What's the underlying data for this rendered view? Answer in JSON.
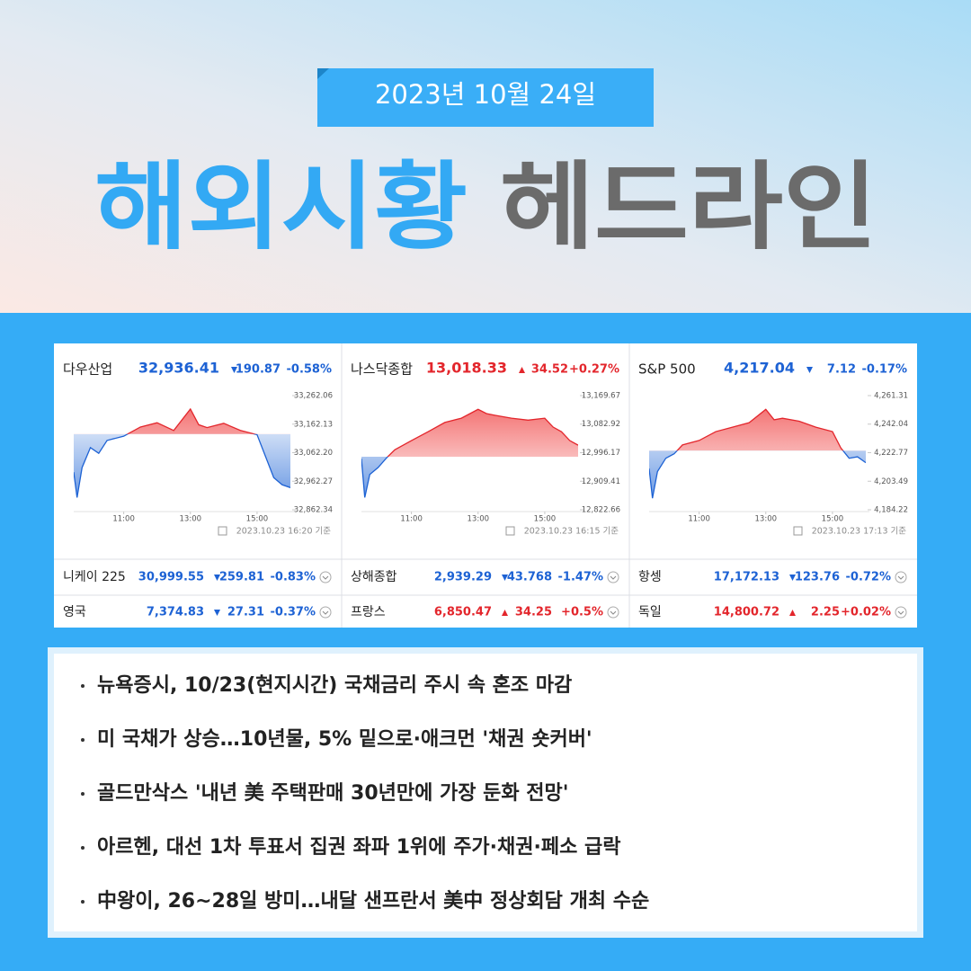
{
  "header": {
    "date": "2023년 10월 24일",
    "title_blue": "해외시황",
    "title_gray": "헤드라인"
  },
  "colors": {
    "up": "#e3262c",
    "down": "#1d62d4"
  },
  "indices": [
    {
      "name": "다우산업",
      "price": "32,936.41",
      "change": "190.87",
      "percent": "-0.58%",
      "direction": "down",
      "timestamp": "2023.10.23 16:20 기준",
      "chart": {
        "type": "line",
        "x": [
          9.5,
          9.6,
          9.75,
          10,
          10.25,
          10.5,
          11,
          11.5,
          12,
          12.5,
          13,
          13.25,
          13.5,
          14,
          14.5,
          15,
          15.25,
          15.5,
          15.75,
          16
        ],
        "values": [
          32994,
          32905,
          33010,
          33080,
          33060,
          33105,
          33120,
          33152,
          33167,
          33140,
          33215,
          33160,
          33150,
          33165,
          33140,
          33125,
          33050,
          32975,
          32950,
          32940
        ],
        "xlim": [
          9.5,
          16
        ],
        "ylim": [
          32862.34,
          33262.06
        ],
        "xticks": [
          {
            "value": 11,
            "label": "11:00"
          },
          {
            "value": 13,
            "label": "13:00"
          },
          {
            "value": 15,
            "label": "15:00"
          }
        ],
        "yticks": [
          {
            "value": 33262.06,
            "label": "33,262.06"
          },
          {
            "value": 33162.13,
            "label": "33,162.13"
          },
          {
            "value": 33062.2,
            "label": "33,062.20"
          },
          {
            "value": 32962.27,
            "label": "32,962.27"
          },
          {
            "value": 32862.34,
            "label": "32,862.34"
          }
        ]
      }
    },
    {
      "name": "나스닥종합",
      "price": "13,018.33",
      "change": "34.52",
      "percent": "+0.27%",
      "direction": "up",
      "timestamp": "2023.10.23 16:15 기준",
      "chart": {
        "type": "line",
        "x": [
          9.5,
          9.6,
          9.75,
          10,
          10.25,
          10.5,
          11,
          11.5,
          12,
          12.5,
          13,
          13.25,
          13.5,
          14,
          14.5,
          15,
          15.25,
          15.5,
          15.75,
          16
        ],
        "values": [
          12978,
          12860,
          12930,
          12951,
          12980,
          13005,
          13033,
          13060,
          13088,
          13101,
          13128,
          13115,
          13110,
          13101,
          13095,
          13101,
          13074,
          13060,
          13033,
          13019
        ],
        "xlim": [
          9.5,
          16
        ],
        "ylim": [
          12822.66,
          13169.67
        ],
        "xticks": [
          {
            "value": 11,
            "label": "11:00"
          },
          {
            "value": 13,
            "label": "13:00"
          },
          {
            "value": 15,
            "label": "15:00"
          }
        ],
        "yticks": [
          {
            "value": 13169.67,
            "label": "13,169.67"
          },
          {
            "value": 13082.92,
            "label": "13,082.92"
          },
          {
            "value": 12996.17,
            "label": "12,996.17"
          },
          {
            "value": 12909.41,
            "label": "12,909.41"
          },
          {
            "value": 12822.66,
            "label": "12,822.66"
          }
        ]
      }
    },
    {
      "name": "S&P 500",
      "price": "4,217.04",
      "change": "7.12",
      "percent": "-0.17%",
      "direction": "down",
      "timestamp": "2023.10.23 17:13 기준",
      "chart": {
        "type": "line",
        "x": [
          9.5,
          9.6,
          9.75,
          10,
          10.25,
          10.5,
          11,
          11.5,
          12,
          12.5,
          13,
          13.25,
          13.5,
          14,
          14.5,
          15,
          15.25,
          15.5,
          15.75,
          16
        ],
        "values": [
          4212,
          4192,
          4210,
          4219,
          4222,
          4228,
          4231,
          4237,
          4240,
          4243,
          4252,
          4245,
          4246,
          4244,
          4240,
          4237,
          4226,
          4219,
          4220,
          4216
        ],
        "xlim": [
          9.5,
          16
        ],
        "ylim": [
          4184.22,
          4261.31
        ],
        "xticks": [
          {
            "value": 11,
            "label": "11:00"
          },
          {
            "value": 13,
            "label": "13:00"
          },
          {
            "value": 15,
            "label": "15:00"
          }
        ],
        "yticks": [
          {
            "value": 4261.31,
            "label": "4,261.31"
          },
          {
            "value": 4242.04,
            "label": "4,242.04"
          },
          {
            "value": 4222.77,
            "label": "4,222.77"
          },
          {
            "value": 4203.49,
            "label": "4,203.49"
          },
          {
            "value": 4184.22,
            "label": "4,184.22"
          }
        ]
      }
    }
  ],
  "other_indices": [
    {
      "name": "니케이 225",
      "price": "30,999.55",
      "change": "259.81",
      "percent": "-0.83%",
      "direction": "down"
    },
    {
      "name": "상해종합",
      "price": "2,939.29",
      "change": "43.768",
      "percent": "-1.47%",
      "direction": "down"
    },
    {
      "name": "항셍",
      "price": "17,172.13",
      "change": "123.76",
      "percent": "-0.72%",
      "direction": "down"
    },
    {
      "name": "영국",
      "price": "7,374.83",
      "change": "27.31",
      "percent": "-0.37%",
      "direction": "down"
    },
    {
      "name": "프랑스",
      "price": "6,850.47",
      "change": "34.25",
      "percent": "+0.5%",
      "direction": "up"
    },
    {
      "name": "독일",
      "price": "14,800.72",
      "change": "2.25",
      "percent": "+0.02%",
      "direction": "up"
    }
  ],
  "news": [
    "뉴욕증시, 10/23(현지시간) 국채금리 주시 속 혼조 마감",
    "미 국채가 상승…10년물, 5% 밑으로·애크먼 '채권 숏커버'",
    "골드만삭스 '내년 美 주택판매 30년만에 가장 둔화 전망'",
    "아르헨, 대선 1차 투표서 집권 좌파 1위에 주가·채권·페소 급락",
    "中왕이, 26~28일 방미…내달 샌프란서 美中 정상회담 개최 수순"
  ]
}
